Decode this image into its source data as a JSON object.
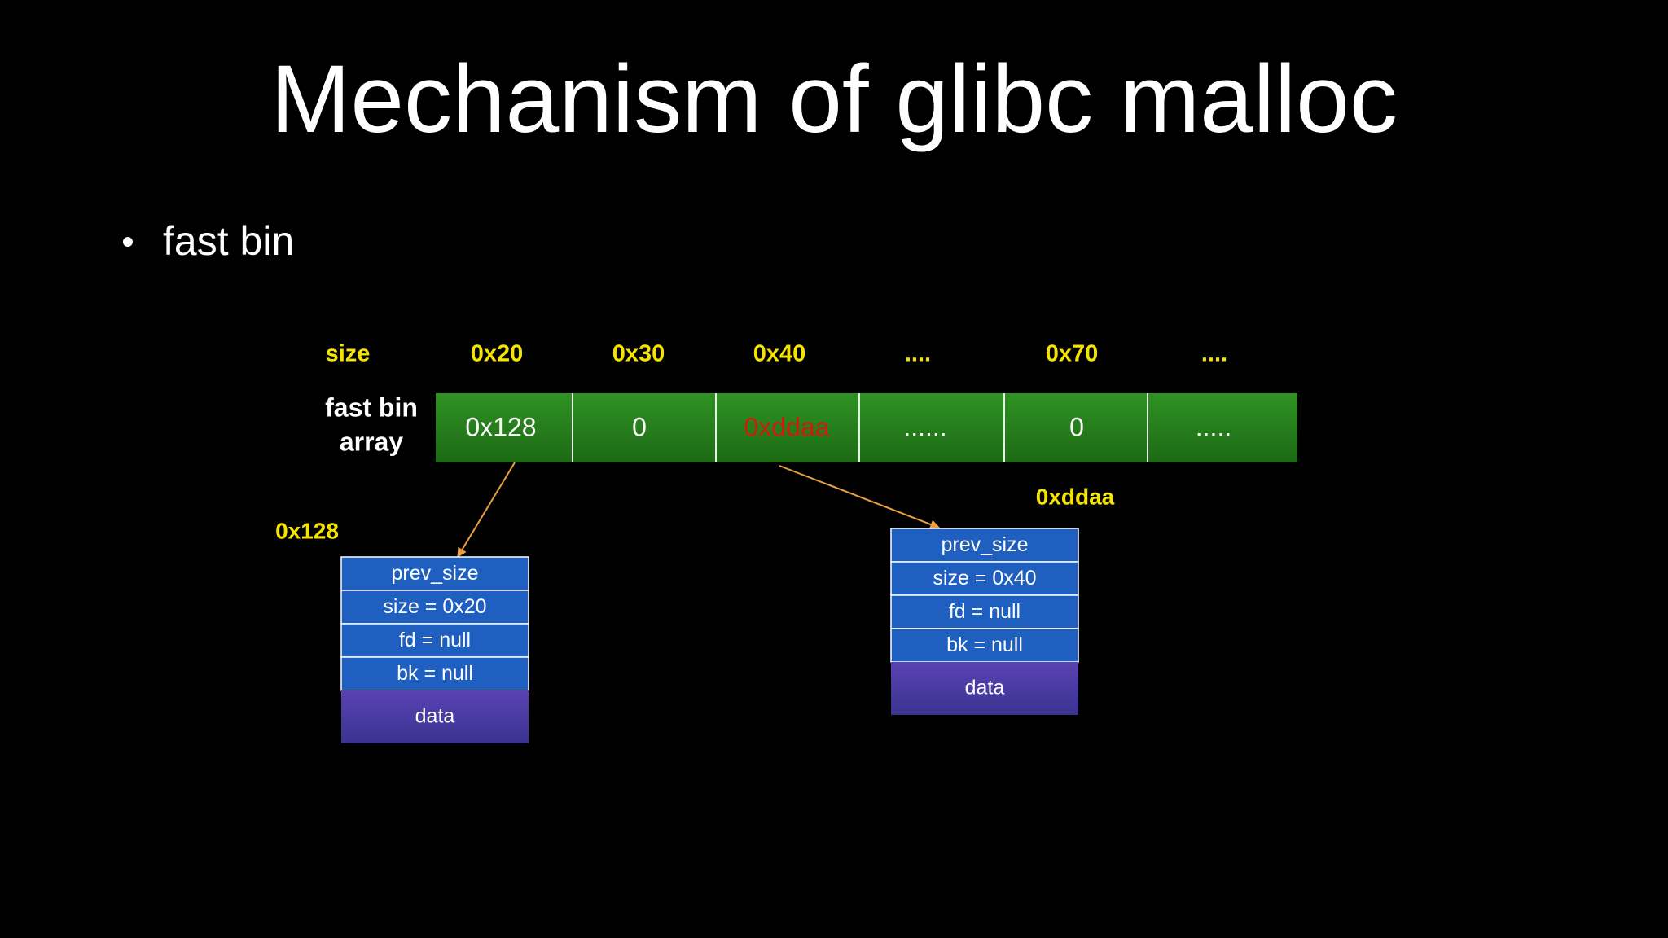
{
  "title": "Mechanism of glibc malloc",
  "bullet": "fast bin",
  "size_row": {
    "label": "size",
    "sizes": [
      "0x20",
      "0x30",
      "0x40",
      "....",
      "0x70",
      "...."
    ]
  },
  "array": {
    "label_lines": [
      "fast bin",
      "array"
    ],
    "cells": [
      "0x128",
      "0",
      "0xddaa",
      "......",
      "0",
      "....."
    ]
  },
  "chunks": [
    {
      "address": "0x128",
      "fields": [
        "prev_size",
        "size = 0x20",
        "fd = null",
        "bk = null"
      ],
      "data": "data"
    },
    {
      "address": "0xddaa",
      "fields": [
        "prev_size",
        "size = 0x40",
        "fd = null",
        "bk = null"
      ],
      "data": "data"
    }
  ]
}
